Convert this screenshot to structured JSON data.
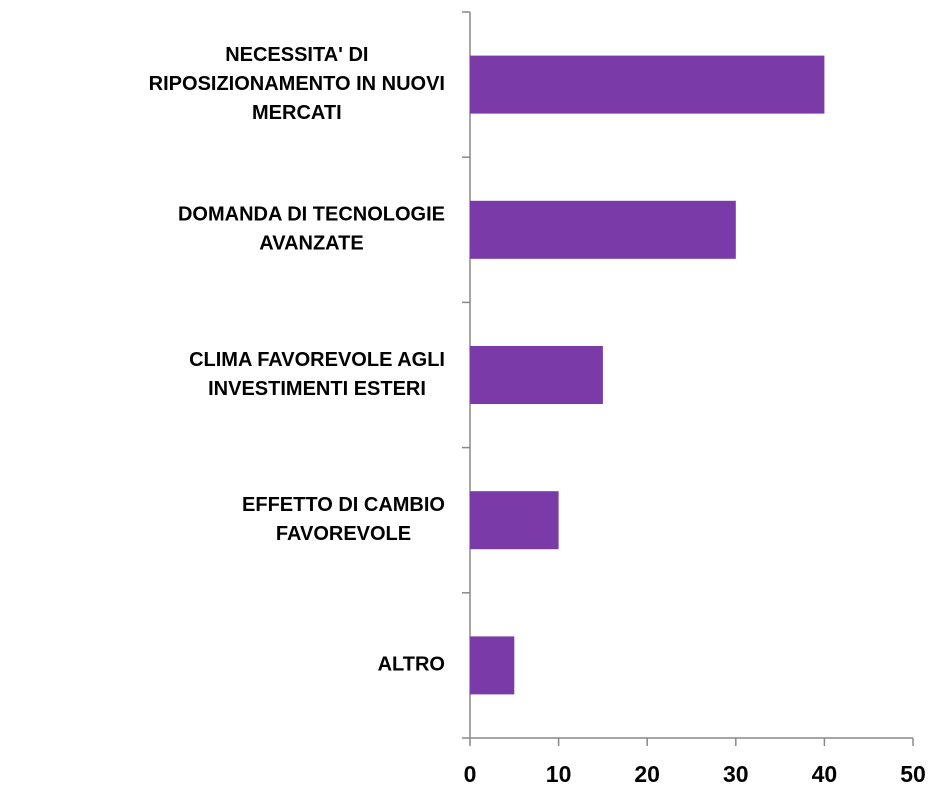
{
  "chart_data": {
    "type": "barh",
    "categories": [
      [
        "NECESSITA' DI",
        "RIPOSIZIONAMENTO IN NUOVI",
        "MERCATI"
      ],
      [
        "DOMANDA DI TECNOLOGIE",
        "AVANZATE"
      ],
      [
        "CLIMA FAVOREVOLE AGLI",
        "INVESTIMENTI ESTERI"
      ],
      [
        "EFFETTO DI CAMBIO",
        "FAVOREVOLE"
      ],
      [
        "ALTRO"
      ]
    ],
    "values": [
      40,
      30,
      15,
      10,
      5
    ],
    "color": "#7a3aa8",
    "xlim": [
      0,
      50
    ],
    "xticks": [
      0,
      10,
      20,
      30,
      40,
      50
    ]
  }
}
